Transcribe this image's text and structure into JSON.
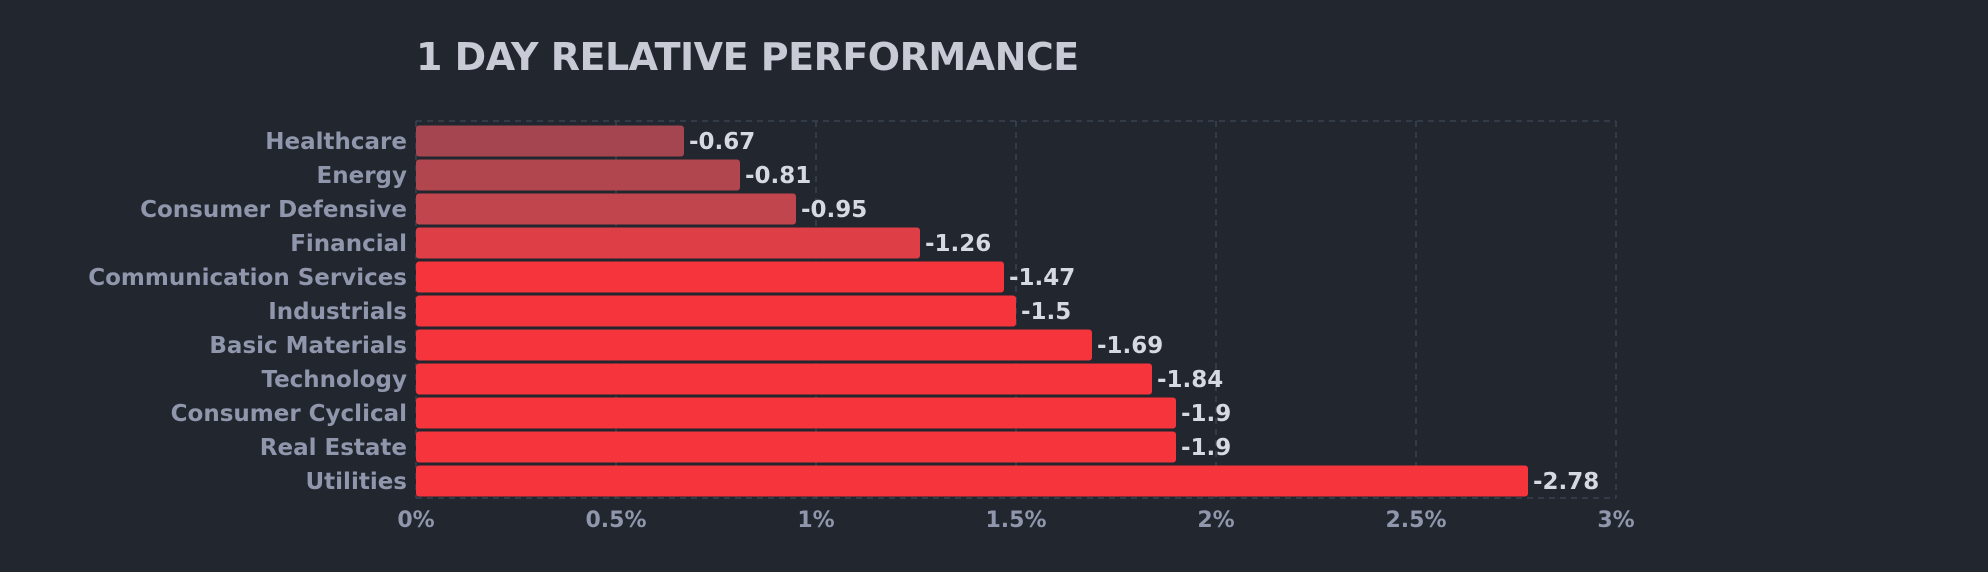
{
  "chart_data": {
    "type": "bar",
    "orientation": "horizontal",
    "title": "1 DAY RELATIVE PERFORMANCE",
    "categories": [
      "Healthcare",
      "Energy",
      "Consumer Defensive",
      "Financial",
      "Communication Services",
      "Industrials",
      "Basic Materials",
      "Technology",
      "Consumer Cyclical",
      "Real Estate",
      "Utilities"
    ],
    "values": [
      -0.67,
      -0.81,
      -0.95,
      -1.26,
      -1.47,
      -1.5,
      -1.69,
      -1.84,
      -1.9,
      -1.9,
      -2.78
    ],
    "value_labels": [
      "-0.67",
      "-0.81",
      "-0.95",
      "-1.26",
      "-1.47",
      "-1.5",
      "-1.69",
      "-1.84",
      "-1.9",
      "-1.9",
      "-2.78"
    ],
    "bar_colors": [
      "#a5454f",
      "#b1464e",
      "#c0454c",
      "#de3f46",
      "#f5343b",
      "#f5343b",
      "#f5343b",
      "#f5343b",
      "#f5343b",
      "#f5343b",
      "#f5343b"
    ],
    "bar_length": "absolute value",
    "xlim": [
      0,
      3
    ],
    "xticks": [
      0,
      0.5,
      1,
      1.5,
      2,
      2.5,
      3
    ],
    "xtick_labels": [
      "0%",
      "0.5%",
      "1%",
      "1.5%",
      "2%",
      "2.5%",
      "3%"
    ],
    "xlabel": "",
    "ylabel": "",
    "grid": "vertical, dashed",
    "legend": "none"
  },
  "colors": {
    "background": "#22262f",
    "title": "#c8cad6",
    "category_text": "#9096ab",
    "value_text": "#d6d8e2",
    "grid": "#3b4250"
  }
}
